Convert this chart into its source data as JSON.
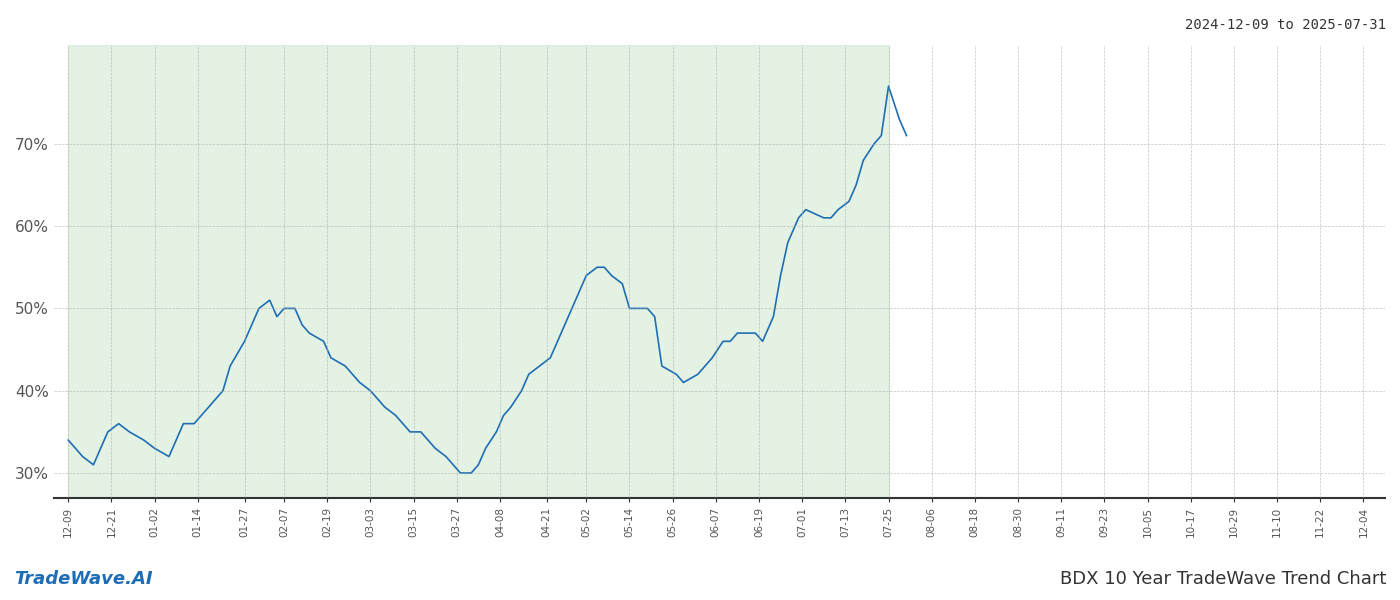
{
  "title_top_right": "2024-12-09 to 2025-07-31",
  "title_bottom": "BDX 10 Year TradeWave Trend Chart",
  "footer_left": "TradeWave.AI",
  "line_color": "#1f6eb5",
  "shaded_color": "#c8e6c9",
  "shaded_alpha": 0.5,
  "background_color": "#ffffff",
  "grid_color": "#aaaaaa",
  "ylim": [
    27,
    82
  ],
  "yticks": [
    30,
    40,
    50,
    60,
    70
  ],
  "ytick_labels": [
    "30%",
    "40%",
    "50%",
    "60%",
    "70%"
  ],
  "shaded_start": "2024-12-09",
  "shaded_end": "2025-07-25",
  "dates": [
    "2024-12-09",
    "2024-12-11",
    "2024-12-13",
    "2024-12-16",
    "2024-12-18",
    "2024-12-20",
    "2024-12-23",
    "2024-12-26",
    "2024-12-30",
    "2025-01-02",
    "2025-01-06",
    "2025-01-08",
    "2025-01-10",
    "2025-01-13",
    "2025-01-15",
    "2025-01-17",
    "2025-01-21",
    "2025-01-23",
    "2025-01-27",
    "2025-01-29",
    "2025-01-31",
    "2025-02-03",
    "2025-02-05",
    "2025-02-07",
    "2025-02-10",
    "2025-02-12",
    "2025-02-14",
    "2025-02-18",
    "2025-02-20",
    "2025-02-24",
    "2025-02-26",
    "2025-02-28",
    "2025-03-03",
    "2025-03-05",
    "2025-03-07",
    "2025-03-10",
    "2025-03-12",
    "2025-03-14",
    "2025-03-17",
    "2025-03-19",
    "2025-03-21",
    "2025-03-24",
    "2025-03-26",
    "2025-03-28",
    "2025-03-31",
    "2025-04-02",
    "2025-04-04",
    "2025-04-07",
    "2025-04-09",
    "2025-04-11",
    "2025-04-14",
    "2025-04-16",
    "2025-04-22",
    "2025-04-24",
    "2025-04-28",
    "2025-04-30",
    "2025-05-02",
    "2025-05-05",
    "2025-05-07",
    "2025-05-09",
    "2025-05-12",
    "2025-05-14",
    "2025-05-16",
    "2025-05-19",
    "2025-05-21",
    "2025-05-23",
    "2025-05-27",
    "2025-05-29",
    "2025-06-02",
    "2025-06-04",
    "2025-06-06",
    "2025-06-09",
    "2025-06-11",
    "2025-06-13",
    "2025-06-16",
    "2025-06-18",
    "2025-06-20",
    "2025-06-23",
    "2025-06-25",
    "2025-06-27",
    "2025-06-30",
    "2025-07-02",
    "2025-07-07",
    "2025-07-09",
    "2025-07-11",
    "2025-07-14",
    "2025-07-16",
    "2025-07-18",
    "2025-07-21",
    "2025-07-23",
    "2025-07-25",
    "2025-07-28",
    "2025-07-30"
  ],
  "values": [
    34,
    33,
    32,
    31,
    33,
    35,
    36,
    35,
    34,
    33,
    32,
    34,
    36,
    36,
    37,
    38,
    40,
    43,
    46,
    48,
    50,
    51,
    49,
    50,
    50,
    48,
    47,
    46,
    44,
    43,
    42,
    41,
    40,
    39,
    38,
    37,
    36,
    35,
    35,
    34,
    33,
    32,
    31,
    30,
    30,
    31,
    33,
    35,
    37,
    38,
    40,
    42,
    44,
    46,
    50,
    52,
    54,
    55,
    55,
    54,
    53,
    50,
    50,
    50,
    49,
    43,
    42,
    41,
    42,
    43,
    44,
    46,
    46,
    47,
    47,
    47,
    46,
    49,
    54,
    58,
    61,
    62,
    61,
    61,
    62,
    63,
    65,
    68,
    70,
    71,
    77,
    73,
    71
  ],
  "x_tick_dates": [
    "2024-12-09",
    "2024-12-21",
    "2025-01-02",
    "2025-01-14",
    "2025-01-27",
    "2025-02-07",
    "2025-02-19",
    "2025-03-03",
    "2025-03-15",
    "2025-03-27",
    "2025-04-08",
    "2025-04-21",
    "2025-05-02",
    "2025-05-14",
    "2025-05-26",
    "2025-06-07",
    "2025-06-19",
    "2025-07-01",
    "2025-07-13",
    "2025-07-25",
    "2025-08-06",
    "2025-08-18",
    "2025-08-30",
    "2025-09-11",
    "2025-09-23",
    "2025-10-05",
    "2025-10-17",
    "2025-10-29",
    "2025-11-10",
    "2025-11-22",
    "2025-12-04"
  ],
  "x_tick_labels": [
    "12-09",
    "12-21",
    "01-02",
    "01-14",
    "01-27",
    "02-07",
    "02-19",
    "03-03",
    "03-15",
    "03-27",
    "04-08",
    "04-21",
    "05-02",
    "05-14",
    "05-26",
    "06-07",
    "06-19",
    "07-01",
    "07-13",
    "07-25",
    "08-06",
    "08-18",
    "08-30",
    "09-11",
    "09-23",
    "10-05",
    "10-17",
    "10-29",
    "11-10",
    "11-22",
    "12-04"
  ]
}
